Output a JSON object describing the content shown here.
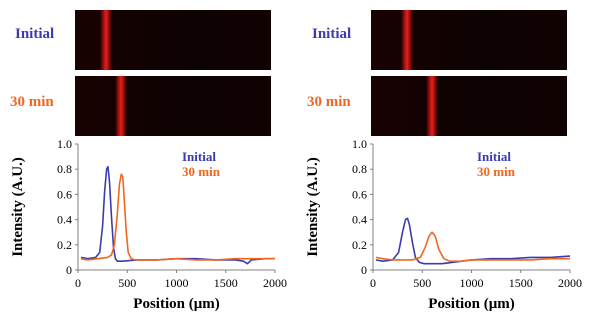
{
  "panels": [
    {
      "strips": [
        {
          "label": "Initial",
          "label_color": "#3b3cab",
          "band_position_um": 300
        },
        {
          "label": "30 min",
          "label_color": "#f2671f",
          "band_position_um": 450
        }
      ]
    },
    {
      "strips": [
        {
          "label": "Initial",
          "label_color": "#3b3cab",
          "band_position_um": 350
        },
        {
          "label": "30 min",
          "label_color": "#f2671f",
          "band_position_um": 600
        }
      ]
    }
  ],
  "chart_data": [
    {
      "type": "line",
      "title": "",
      "xlabel": "Position (μm)",
      "ylabel": "Intensity (A.U.)",
      "xlim": [
        0,
        2000
      ],
      "ylim": [
        0,
        1.0
      ],
      "xticks": [
        0,
        500,
        1000,
        1500,
        2000
      ],
      "yticks": [
        0,
        0.2,
        0.4,
        0.6,
        0.8,
        1.0
      ],
      "ytick_labels": [
        "0",
        "0.2",
        "0.4",
        "0.6",
        "0.8",
        "1.0"
      ],
      "legend_position": "top-right",
      "series": [
        {
          "name": "Initial",
          "color": "#3b3cab",
          "x": [
            30,
            100,
            180,
            220,
            250,
            270,
            290,
            305,
            320,
            340,
            360,
            380,
            400,
            450,
            600,
            800,
            1000,
            1200,
            1400,
            1600,
            1680,
            1720,
            1760,
            1900,
            2000
          ],
          "y": [
            0.1,
            0.09,
            0.1,
            0.14,
            0.35,
            0.62,
            0.8,
            0.82,
            0.7,
            0.42,
            0.18,
            0.09,
            0.07,
            0.07,
            0.08,
            0.08,
            0.09,
            0.09,
            0.08,
            0.08,
            0.07,
            0.05,
            0.08,
            0.09,
            0.09
          ]
        },
        {
          "name": "30 min",
          "color": "#f2671f",
          "x": [
            30,
            100,
            200,
            300,
            340,
            370,
            400,
            420,
            440,
            455,
            470,
            490,
            510,
            540,
            580,
            650,
            800,
            1000,
            1200,
            1400,
            1600,
            1800,
            2000
          ],
          "y": [
            0.09,
            0.08,
            0.09,
            0.1,
            0.12,
            0.2,
            0.45,
            0.68,
            0.76,
            0.74,
            0.55,
            0.3,
            0.14,
            0.09,
            0.08,
            0.08,
            0.08,
            0.09,
            0.08,
            0.08,
            0.09,
            0.09,
            0.09
          ]
        }
      ]
    },
    {
      "type": "line",
      "title": "",
      "xlabel": "Position (μm)",
      "ylabel": "Intensity (A.U.)",
      "xlim": [
        0,
        2000
      ],
      "ylim": [
        0,
        1.0
      ],
      "xticks": [
        0,
        500,
        1000,
        1500,
        2000
      ],
      "yticks": [
        0,
        0.2,
        0.4,
        0.6,
        0.8,
        1.0
      ],
      "ytick_labels": [
        "0",
        "0.2",
        "0.4",
        "0.6",
        "0.8",
        "1.0"
      ],
      "legend_position": "top-right",
      "series": [
        {
          "name": "Initial",
          "color": "#3b3cab",
          "x": [
            30,
            100,
            200,
            260,
            300,
            330,
            350,
            370,
            400,
            430,
            470,
            520,
            600,
            700,
            800,
            1000,
            1200,
            1400,
            1600,
            1800,
            2000
          ],
          "y": [
            0.08,
            0.07,
            0.08,
            0.14,
            0.3,
            0.4,
            0.41,
            0.36,
            0.22,
            0.1,
            0.06,
            0.05,
            0.05,
            0.05,
            0.06,
            0.08,
            0.09,
            0.09,
            0.1,
            0.1,
            0.11
          ]
        },
        {
          "name": "30 min",
          "color": "#f2671f",
          "x": [
            30,
            100,
            200,
            300,
            400,
            480,
            530,
            570,
            600,
            630,
            670,
            720,
            780,
            900,
            1000,
            1200,
            1400,
            1600,
            1800,
            2000
          ],
          "y": [
            0.1,
            0.09,
            0.08,
            0.08,
            0.08,
            0.1,
            0.18,
            0.27,
            0.3,
            0.27,
            0.16,
            0.09,
            0.07,
            0.07,
            0.08,
            0.08,
            0.08,
            0.08,
            0.09,
            0.09
          ]
        }
      ]
    }
  ]
}
